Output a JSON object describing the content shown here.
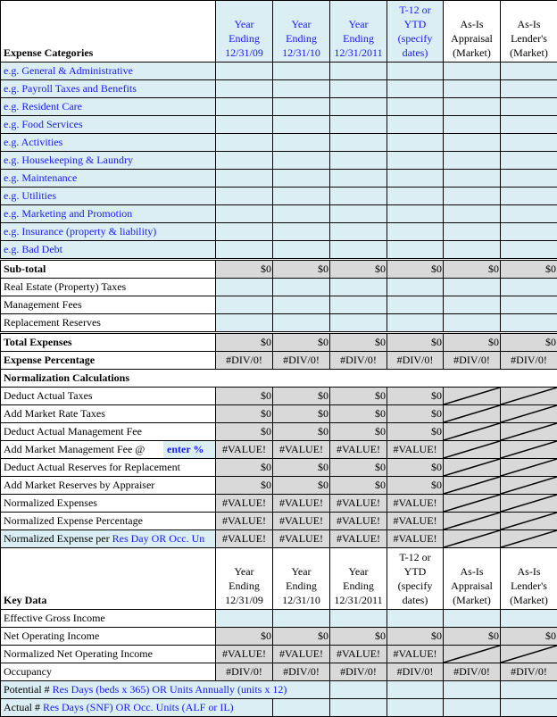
{
  "header": {
    "title": "Expense Categories",
    "columns": [
      [
        "Year",
        "Ending",
        "12/31/09"
      ],
      [
        "Year",
        "Ending",
        "12/31/10"
      ],
      [
        "Year",
        "Ending",
        "12/31/2011"
      ],
      [
        "T-12 or",
        "YTD",
        "(specify",
        "dates)"
      ],
      [
        "As-Is",
        "Appraisal",
        "(Market)"
      ],
      [
        "As-Is",
        "Lender's",
        "(Market)"
      ]
    ]
  },
  "expense_rows": [
    "e.g. General & Administrative",
    "e.g. Payroll Taxes and Benefits",
    "e.g. Resident Care",
    "e.g. Food Services",
    "e.g. Activities",
    "e.g. Housekeeping  & Laundry",
    "e.g. Maintenance",
    "e.g. Utilities",
    "e.g. Marketing and Promotion",
    "e.g. Insurance (property & liability)",
    "e.g. Bad Debt"
  ],
  "subtotal": {
    "label": "Sub-total",
    "values": [
      "$0",
      "$0",
      "$0",
      "$0",
      "$0",
      "$0"
    ]
  },
  "other_rows": [
    "Real Estate (Property) Taxes",
    "Management Fees",
    "Replacement Reserves"
  ],
  "total_expenses": {
    "label": "Total Expenses",
    "values": [
      "$0",
      "$0",
      "$0",
      "$0",
      "$0",
      "$0"
    ]
  },
  "expense_percentage": {
    "label": "Expense Percentage",
    "values": [
      "#DIV/0!",
      "#DIV/0!",
      "#DIV/0!",
      "#DIV/0!",
      "#DIV/0!",
      "#DIV/0!"
    ]
  },
  "normalization": {
    "title": "Normalization Calculations",
    "enter_pct": "enter %",
    "rows": [
      {
        "label": "Deduct Actual Taxes",
        "values": [
          "$0",
          "$0",
          "$0",
          "$0"
        ]
      },
      {
        "label": "Add Market Rate Taxes",
        "values": [
          "$0",
          "$0",
          "$0",
          "$0"
        ]
      },
      {
        "label": "Deduct Actual Management Fee",
        "values": [
          "$0",
          "$0",
          "$0",
          "$0"
        ]
      },
      {
        "label": "Add Market Management Fee @",
        "values": [
          "#VALUE!",
          "#VALUE!",
          "#VALUE!",
          "#VALUE!"
        ]
      },
      {
        "label": "Deduct Actual Reserves for Replacement",
        "values": [
          "$0",
          "$0",
          "$0",
          "$0"
        ]
      },
      {
        "label": "Add Market Reserves by Appraiser",
        "values": [
          "$0",
          "$0",
          "$0",
          "$0"
        ]
      },
      {
        "label": "Normalized Expenses",
        "values": [
          "#VALUE!",
          "#VALUE!",
          "#VALUE!",
          "#VALUE!"
        ]
      },
      {
        "label": "Normalized Expense Percentage",
        "values": [
          "#VALUE!",
          "#VALUE!",
          "#VALUE!",
          "#VALUE!"
        ]
      },
      {
        "label": "Normalized Expense per ",
        "label_blue": "Res Day OR Occ. Un",
        "values": [
          "#VALUE!",
          "#VALUE!",
          "#VALUE!",
          "#VALUE!"
        ]
      }
    ]
  },
  "key_data": {
    "title": "Key Data",
    "effective_gross_income": "Effective Gross Income",
    "noi": {
      "label": "Net Operating Income",
      "values": [
        "$0",
        "$0",
        "$0",
        "$0",
        "$0",
        "$0"
      ]
    },
    "normalized_noi": {
      "label": "Normalized Net Operating Income",
      "values": [
        "#VALUE!",
        "#VALUE!",
        "#VALUE!",
        "#VALUE!"
      ]
    },
    "occupancy": {
      "label": "Occupancy",
      "values": [
        "#DIV/0!",
        "#DIV/0!",
        "#DIV/0!",
        "#DIV/0!",
        "#DIV/0!",
        "#DIV/0!"
      ]
    },
    "potential": {
      "prefix": "Potential # ",
      "blue": "Res Days (beds x 365) OR Units Annually (units x 12)"
    },
    "actual": {
      "prefix": "Actual # ",
      "blue": "Res Days (SNF) OR Occ. Units (ALF or IL)"
    }
  },
  "colors": {
    "input_fill": "#daeef3",
    "calc_fill": "#d9d9d9",
    "input_text": "#1a1aff"
  }
}
